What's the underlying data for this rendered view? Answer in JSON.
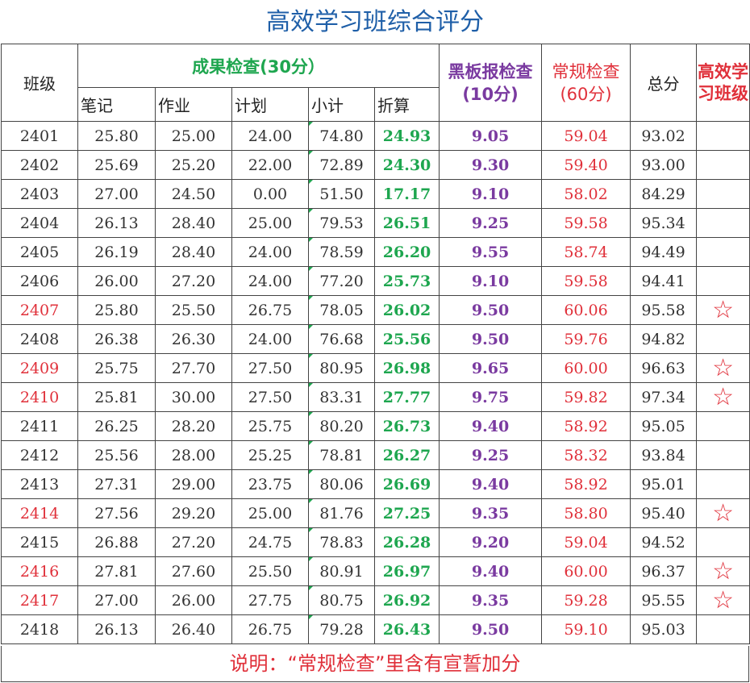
{
  "title": "高效学习班综合评分",
  "headers": {
    "class": "班级",
    "results_group": "成果检查(30分）",
    "sub": [
      "笔记",
      "作业",
      "计划",
      "小计",
      "折算"
    ],
    "blackboard": "黑板报检查(10分)",
    "routine": "常规检查(60分)",
    "total": "总分",
    "efficient": "高效学习班级"
  },
  "colors": {
    "title": "#1f5fa8",
    "green": "#1ea64f",
    "purple": "#7a3aa0",
    "red": "#e0303a"
  },
  "rows": [
    {
      "cls": "2401",
      "notes": "25.80",
      "homework": "25.00",
      "plan": "24.00",
      "subtotal": "74.80",
      "converted": "24.93",
      "blackboard": "9.05",
      "routine": "59.04",
      "total": "93.02",
      "star": ""
    },
    {
      "cls": "2402",
      "notes": "25.69",
      "homework": "25.20",
      "plan": "22.00",
      "subtotal": "72.89",
      "converted": "24.30",
      "blackboard": "9.30",
      "routine": "59.40",
      "total": "93.00",
      "star": ""
    },
    {
      "cls": "2403",
      "notes": "27.00",
      "homework": "24.50",
      "plan": "0.00",
      "subtotal": "51.50",
      "converted": "17.17",
      "blackboard": "9.10",
      "routine": "58.02",
      "total": "84.29",
      "star": ""
    },
    {
      "cls": "2404",
      "notes": "26.13",
      "homework": "28.40",
      "plan": "25.00",
      "subtotal": "79.53",
      "converted": "26.51",
      "blackboard": "9.25",
      "routine": "59.58",
      "total": "95.34",
      "star": ""
    },
    {
      "cls": "2405",
      "notes": "26.19",
      "homework": "28.40",
      "plan": "24.00",
      "subtotal": "78.59",
      "converted": "26.20",
      "blackboard": "9.55",
      "routine": "58.74",
      "total": "94.49",
      "star": ""
    },
    {
      "cls": "2406",
      "notes": "26.00",
      "homework": "27.20",
      "plan": "24.00",
      "subtotal": "77.20",
      "converted": "25.73",
      "blackboard": "9.10",
      "routine": "59.58",
      "total": "94.41",
      "star": ""
    },
    {
      "cls": "2407",
      "notes": "25.80",
      "homework": "25.50",
      "plan": "26.75",
      "subtotal": "78.05",
      "converted": "26.02",
      "blackboard": "9.50",
      "routine": "60.06",
      "total": "95.58",
      "star": "☆"
    },
    {
      "cls": "2408",
      "notes": "26.38",
      "homework": "26.30",
      "plan": "24.00",
      "subtotal": "76.68",
      "converted": "25.56",
      "blackboard": "9.50",
      "routine": "59.76",
      "total": "94.82",
      "star": ""
    },
    {
      "cls": "2409",
      "notes": "25.75",
      "homework": "27.70",
      "plan": "27.50",
      "subtotal": "80.95",
      "converted": "26.98",
      "blackboard": "9.65",
      "routine": "60.00",
      "total": "96.63",
      "star": "☆"
    },
    {
      "cls": "2410",
      "notes": "25.81",
      "homework": "30.00",
      "plan": "27.50",
      "subtotal": "83.31",
      "converted": "27.77",
      "blackboard": "9.75",
      "routine": "59.82",
      "total": "97.34",
      "star": "☆"
    },
    {
      "cls": "2411",
      "notes": "26.25",
      "homework": "28.20",
      "plan": "25.75",
      "subtotal": "80.20",
      "converted": "26.73",
      "blackboard": "9.40",
      "routine": "58.92",
      "total": "95.05",
      "star": ""
    },
    {
      "cls": "2412",
      "notes": "25.56",
      "homework": "28.00",
      "plan": "25.25",
      "subtotal": "78.81",
      "converted": "26.27",
      "blackboard": "9.25",
      "routine": "58.32",
      "total": "93.84",
      "star": ""
    },
    {
      "cls": "2413",
      "notes": "27.31",
      "homework": "29.00",
      "plan": "23.75",
      "subtotal": "80.06",
      "converted": "26.69",
      "blackboard": "9.40",
      "routine": "58.92",
      "total": "95.01",
      "star": ""
    },
    {
      "cls": "2414",
      "notes": "27.56",
      "homework": "29.20",
      "plan": "25.00",
      "subtotal": "81.76",
      "converted": "27.25",
      "blackboard": "9.35",
      "routine": "58.80",
      "total": "95.40",
      "star": "☆"
    },
    {
      "cls": "2415",
      "notes": "26.88",
      "homework": "27.20",
      "plan": "24.75",
      "subtotal": "78.83",
      "converted": "26.28",
      "blackboard": "9.20",
      "routine": "59.04",
      "total": "94.52",
      "star": ""
    },
    {
      "cls": "2416",
      "notes": "27.81",
      "homework": "27.60",
      "plan": "25.50",
      "subtotal": "80.91",
      "converted": "26.97",
      "blackboard": "9.40",
      "routine": "60.00",
      "total": "96.37",
      "star": "☆"
    },
    {
      "cls": "2417",
      "notes": "27.00",
      "homework": "26.00",
      "plan": "27.75",
      "subtotal": "80.75",
      "converted": "26.92",
      "blackboard": "9.35",
      "routine": "59.28",
      "total": "95.55",
      "star": "☆"
    },
    {
      "cls": "2418",
      "notes": "26.13",
      "homework": "26.40",
      "plan": "26.75",
      "subtotal": "79.28",
      "converted": "26.43",
      "blackboard": "9.50",
      "routine": "59.10",
      "total": "95.03",
      "star": ""
    }
  ],
  "note": "说明：“常规检查”里含有宣誓加分"
}
